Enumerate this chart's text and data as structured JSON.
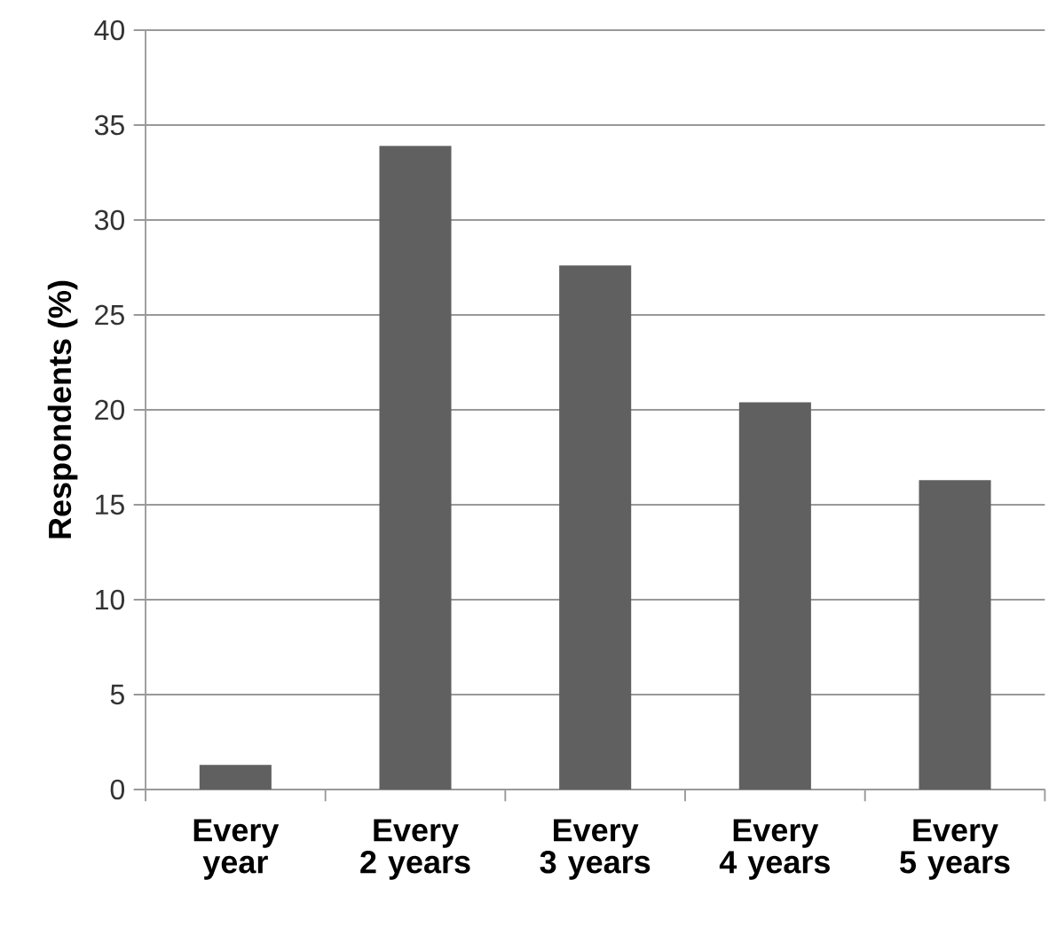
{
  "chart_data": {
    "type": "bar",
    "ylabel": "Respondents (%)",
    "categories": [
      "Every year",
      "Every 2 years",
      "Every 3 years",
      "Every 4 years",
      "Every 5 years"
    ],
    "values": [
      1.3,
      33.9,
      27.6,
      20.4,
      16.3
    ],
    "color": "#606060",
    "ylim": [
      0,
      40
    ],
    "yticks": [
      0,
      5,
      10,
      15,
      20,
      25,
      30,
      35,
      40
    ],
    "grid": "y"
  }
}
